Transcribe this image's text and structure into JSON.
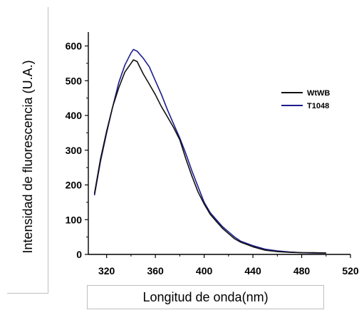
{
  "chart_data": {
    "type": "line",
    "title": "",
    "xlabel": "Longitud  de onda(nm)",
    "ylabel": "Intensidad  de fluorescencia  (U.A.)",
    "xlim": [
      305,
      520
    ],
    "ylim": [
      0,
      640
    ],
    "xticks": [
      320,
      360,
      400,
      440,
      480,
      520
    ],
    "yticks": [
      0,
      100,
      200,
      300,
      400,
      500,
      600
    ],
    "grid": false,
    "legend_position": "right",
    "colors": {
      "WtWB": "#111111",
      "T1048": "#1c1c8f",
      "axis": "#000000"
    },
    "series": [
      {
        "name": "WtWB",
        "x": [
          310,
          315,
          320,
          325,
          330,
          335,
          340,
          342,
          345,
          350,
          355,
          360,
          365,
          370,
          375,
          380,
          385,
          390,
          395,
          400,
          405,
          410,
          415,
          420,
          425,
          430,
          440,
          450,
          460,
          470,
          480,
          490,
          500
        ],
        "y": [
          175,
          275,
          355,
          425,
          480,
          525,
          550,
          560,
          555,
          520,
          490,
          460,
          425,
          395,
          365,
          330,
          275,
          225,
          180,
          145,
          115,
          95,
          75,
          60,
          45,
          35,
          22,
          12,
          8,
          6,
          5,
          5,
          4
        ]
      },
      {
        "name": "T1048",
        "x": [
          310,
          315,
          320,
          325,
          330,
          335,
          340,
          342,
          345,
          350,
          355,
          360,
          365,
          370,
          375,
          380,
          385,
          390,
          395,
          400,
          405,
          410,
          415,
          420,
          425,
          430,
          440,
          450,
          460,
          470,
          480,
          490,
          500
        ],
        "y": [
          170,
          268,
          350,
          425,
          495,
          545,
          580,
          590,
          585,
          565,
          540,
          500,
          460,
          415,
          375,
          335,
          290,
          240,
          195,
          150,
          120,
          100,
          80,
          65,
          50,
          38,
          25,
          15,
          10,
          7,
          5,
          4,
          4
        ]
      }
    ]
  }
}
